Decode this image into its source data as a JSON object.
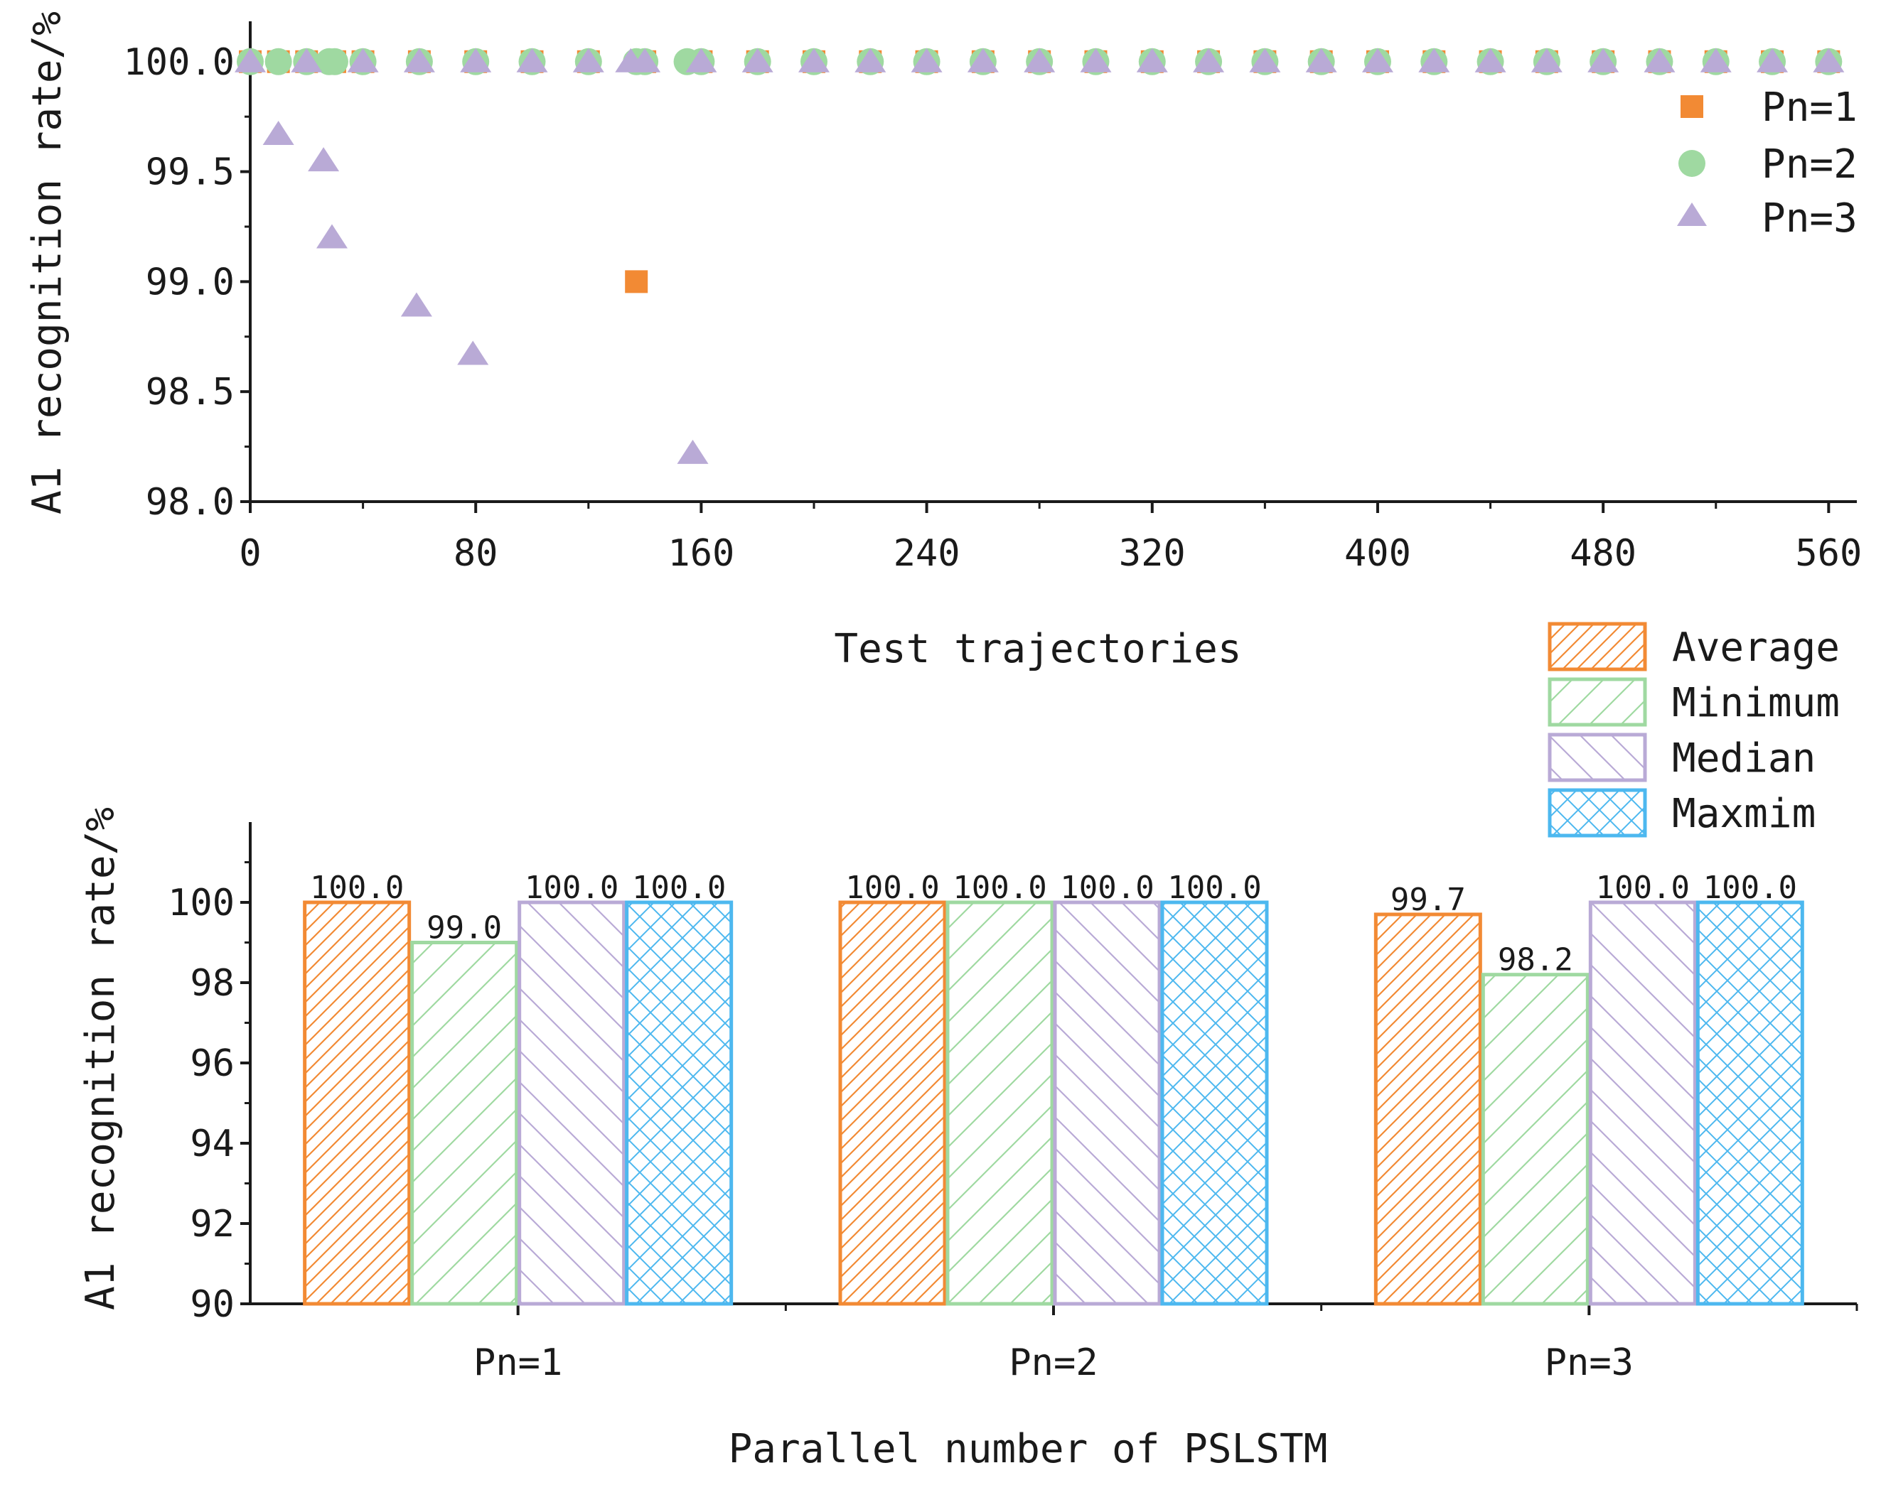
{
  "colors": {
    "pn1": "#f28a34",
    "pn2": "#9fd9a1",
    "pn3": "#b9aad6",
    "average": "#f28a34",
    "minimum": "#9fd9a1",
    "median": "#b9aad6",
    "maximum": "#4db8ef",
    "axis": "#1a1a1a"
  },
  "chart_data": [
    {
      "type": "scatter",
      "title": "",
      "xlabel": "Test trajectories",
      "ylabel": "A1 recognition rate/%",
      "xlim": [
        0,
        570
      ],
      "ylim": [
        98.0,
        100.08
      ],
      "xticks": [
        0,
        80,
        160,
        240,
        320,
        400,
        480,
        560
      ],
      "xtick_labels": [
        "0",
        "80",
        "160",
        "240",
        "320",
        "400",
        "480",
        "560"
      ],
      "yticks": [
        98.0,
        98.5,
        99.0,
        99.5,
        100.0
      ],
      "ytick_labels": [
        "98.0",
        "98.5",
        "99.0",
        "99.5",
        "100.0"
      ],
      "legend_position": "top-right",
      "series": [
        {
          "name": "Pn=1",
          "marker": "square",
          "color_key": "pn1",
          "points": [
            [
              0,
              100.0
            ],
            [
              10,
              100.0
            ],
            [
              20,
              100.0
            ],
            [
              30,
              100.0
            ],
            [
              40,
              100.0
            ],
            [
              60,
              100.0
            ],
            [
              80,
              100.0
            ],
            [
              100,
              100.0
            ],
            [
              120,
              100.0
            ],
            [
              137,
              99.0
            ],
            [
              140,
              100.0
            ],
            [
              160,
              100.0
            ],
            [
              180,
              100.0
            ],
            [
              200,
              100.0
            ],
            [
              220,
              100.0
            ],
            [
              240,
              100.0
            ],
            [
              260,
              100.0
            ],
            [
              280,
              100.0
            ],
            [
              300,
              100.0
            ],
            [
              320,
              100.0
            ],
            [
              340,
              100.0
            ],
            [
              360,
              100.0
            ],
            [
              380,
              100.0
            ],
            [
              400,
              100.0
            ],
            [
              420,
              100.0
            ],
            [
              440,
              100.0
            ],
            [
              460,
              100.0
            ],
            [
              480,
              100.0
            ],
            [
              500,
              100.0
            ],
            [
              520,
              100.0
            ],
            [
              540,
              100.0
            ],
            [
              560,
              100.0
            ]
          ]
        },
        {
          "name": "Pn=2",
          "marker": "circle",
          "color_key": "pn2",
          "points": [
            [
              0,
              100.0
            ],
            [
              10,
              100.0
            ],
            [
              20,
              100.0
            ],
            [
              28,
              100.0
            ],
            [
              30,
              100.0
            ],
            [
              40,
              100.0
            ],
            [
              60,
              100.0
            ],
            [
              80,
              100.0
            ],
            [
              100,
              100.0
            ],
            [
              120,
              100.0
            ],
            [
              137,
              100.0
            ],
            [
              140,
              100.0
            ],
            [
              155,
              100.0
            ],
            [
              160,
              100.0
            ],
            [
              180,
              100.0
            ],
            [
              200,
              100.0
            ],
            [
              220,
              100.0
            ],
            [
              240,
              100.0
            ],
            [
              260,
              100.0
            ],
            [
              280,
              100.0
            ],
            [
              300,
              100.0
            ],
            [
              320,
              100.0
            ],
            [
              340,
              100.0
            ],
            [
              360,
              100.0
            ],
            [
              380,
              100.0
            ],
            [
              400,
              100.0
            ],
            [
              420,
              100.0
            ],
            [
              440,
              100.0
            ],
            [
              460,
              100.0
            ],
            [
              480,
              100.0
            ],
            [
              500,
              100.0
            ],
            [
              520,
              100.0
            ],
            [
              540,
              100.0
            ],
            [
              560,
              100.0
            ]
          ]
        },
        {
          "name": "Pn=3",
          "marker": "triangle",
          "color_key": "pn3",
          "points": [
            [
              0,
              100.0
            ],
            [
              10,
              99.67
            ],
            [
              20,
              100.0
            ],
            [
              26,
              99.55
            ],
            [
              29,
              99.2
            ],
            [
              40,
              100.0
            ],
            [
              59,
              98.89
            ],
            [
              60,
              100.0
            ],
            [
              79,
              98.67
            ],
            [
              80,
              100.0
            ],
            [
              100,
              100.0
            ],
            [
              120,
              100.0
            ],
            [
              135,
              100.0
            ],
            [
              140,
              100.0
            ],
            [
              157,
              98.22
            ],
            [
              160,
              100.0
            ],
            [
              180,
              100.0
            ],
            [
              200,
              100.0
            ],
            [
              220,
              100.0
            ],
            [
              240,
              100.0
            ],
            [
              260,
              100.0
            ],
            [
              280,
              100.0
            ],
            [
              300,
              100.0
            ],
            [
              320,
              100.0
            ],
            [
              340,
              100.0
            ],
            [
              360,
              100.0
            ],
            [
              380,
              100.0
            ],
            [
              400,
              100.0
            ],
            [
              420,
              100.0
            ],
            [
              440,
              100.0
            ],
            [
              460,
              100.0
            ],
            [
              480,
              100.0
            ],
            [
              500,
              100.0
            ],
            [
              520,
              100.0
            ],
            [
              540,
              100.0
            ],
            [
              560,
              100.0
            ]
          ]
        }
      ]
    },
    {
      "type": "bar",
      "title": "",
      "xlabel": "Parallel number of PSLSTM",
      "ylabel": "A1 recognition rate/%",
      "ylim": [
        90,
        102
      ],
      "yticks": [
        90,
        92,
        94,
        96,
        98,
        100
      ],
      "ytick_labels": [
        "90",
        "92",
        "94",
        "96",
        "98",
        "100"
      ],
      "categories": [
        "Pn=1",
        "Pn=2",
        "Pn=3"
      ],
      "legend_position": "top-right",
      "series": [
        {
          "name": "Average",
          "color_key": "average",
          "pattern": "diag-up-dense",
          "values": [
            100.0,
            100.0,
            99.7
          ],
          "labels": [
            "100.0",
            "100.0",
            "99.7"
          ]
        },
        {
          "name": "Minimum",
          "color_key": "minimum",
          "pattern": "diag-up",
          "values": [
            99.0,
            100.0,
            98.2
          ],
          "labels": [
            "99.0",
            "100.0",
            "98.2"
          ]
        },
        {
          "name": "Median",
          "color_key": "median",
          "pattern": "diag-down",
          "values": [
            100.0,
            100.0,
            100.0
          ],
          "labels": [
            "100.0",
            "100.0",
            "100.0"
          ]
        },
        {
          "name": "Maxmim",
          "color_key": "maximum",
          "pattern": "cross",
          "values": [
            100.0,
            100.0,
            100.0
          ],
          "labels": [
            "100.0",
            "100.0",
            "100.0"
          ]
        }
      ]
    }
  ]
}
